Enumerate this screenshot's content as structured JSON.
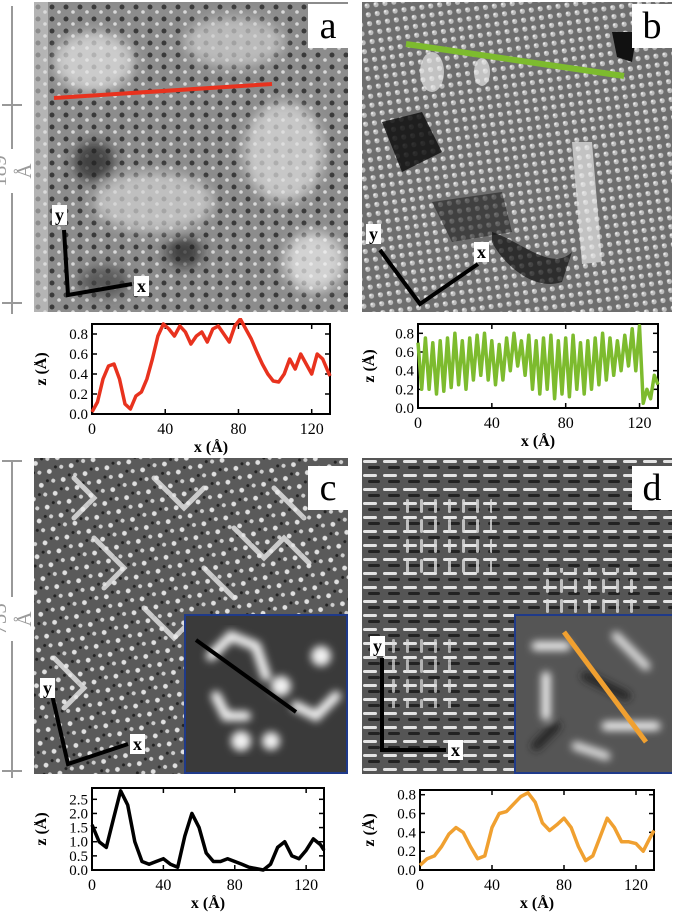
{
  "panels": {
    "a": {
      "label": "a",
      "x_axis": "x",
      "y_axis": "y"
    },
    "b": {
      "label": "b",
      "x_axis": "x",
      "y_axis": "y"
    },
    "c": {
      "label": "c",
      "x_axis": "x",
      "y_axis": "y"
    },
    "d": {
      "label": "d",
      "x_axis": "x",
      "y_axis": "y"
    }
  },
  "scalebars": {
    "top": "189 Å",
    "bottom": "755 Å"
  },
  "colors": {
    "a": "#e8321e",
    "b": "#7dbb2e",
    "c": "#000000",
    "d": "#f0a030",
    "inset_border": "#1f3a8a"
  },
  "chart_data": [
    {
      "type": "line",
      "panel": "a",
      "color": "#e8321e",
      "xlabel": "x (Å)",
      "ylabel": "z (Å)",
      "xlim": [
        0,
        130
      ],
      "ylim": [
        0,
        0.9
      ],
      "xticks": [
        "0",
        "40",
        "80",
        "120"
      ],
      "yticks": [
        "0.0",
        "0.2",
        "0.4",
        "0.6",
        "0.8"
      ],
      "x": [
        0,
        3,
        6,
        9,
        12,
        15,
        18,
        21,
        24,
        27,
        30,
        33,
        36,
        39,
        42,
        45,
        48,
        51,
        54,
        57,
        60,
        63,
        66,
        69,
        72,
        75,
        78,
        81,
        84,
        87,
        90,
        93,
        96,
        99,
        102,
        105,
        108,
        111,
        114,
        117,
        120,
        123,
        126,
        129,
        130
      ],
      "y": [
        0.02,
        0.12,
        0.35,
        0.48,
        0.5,
        0.35,
        0.1,
        0.05,
        0.18,
        0.22,
        0.35,
        0.55,
        0.78,
        0.9,
        0.85,
        0.78,
        0.88,
        0.82,
        0.7,
        0.78,
        0.82,
        0.72,
        0.85,
        0.88,
        0.8,
        0.72,
        0.88,
        0.95,
        0.85,
        0.75,
        0.62,
        0.5,
        0.4,
        0.33,
        0.32,
        0.4,
        0.55,
        0.45,
        0.6,
        0.5,
        0.4,
        0.6,
        0.55,
        0.42,
        0.38
      ]
    },
    {
      "type": "line",
      "panel": "b",
      "color": "#7dbb2e",
      "xlabel": "x (Å)",
      "ylabel": "z (Å)",
      "xlim": [
        0,
        130
      ],
      "ylim": [
        0,
        0.9
      ],
      "xticks": [
        "0",
        "40",
        "80",
        "120"
      ],
      "yticks": [
        "0.0",
        "0.2",
        "0.4",
        "0.6",
        "0.8"
      ],
      "x": [
        0,
        2,
        4,
        6,
        8,
        10,
        12,
        14,
        16,
        18,
        20,
        22,
        24,
        26,
        28,
        30,
        32,
        34,
        36,
        38,
        40,
        42,
        44,
        46,
        48,
        50,
        52,
        54,
        56,
        58,
        60,
        62,
        64,
        66,
        68,
        70,
        72,
        74,
        76,
        78,
        80,
        82,
        84,
        86,
        88,
        90,
        92,
        94,
        96,
        98,
        100,
        102,
        104,
        106,
        108,
        110,
        112,
        114,
        116,
        118,
        120,
        122,
        124,
        126,
        128,
        130
      ],
      "y": [
        0.7,
        0.2,
        0.75,
        0.2,
        0.7,
        0.15,
        0.72,
        0.18,
        0.75,
        0.22,
        0.8,
        0.25,
        0.72,
        0.2,
        0.75,
        0.3,
        0.78,
        0.35,
        0.8,
        0.3,
        0.72,
        0.25,
        0.68,
        0.3,
        0.75,
        0.4,
        0.8,
        0.45,
        0.72,
        0.35,
        0.78,
        0.2,
        0.72,
        0.15,
        0.75,
        0.2,
        0.78,
        0.1,
        0.72,
        0.15,
        0.75,
        0.12,
        0.78,
        0.2,
        0.7,
        0.15,
        0.72,
        0.2,
        0.75,
        0.25,
        0.8,
        0.3,
        0.75,
        0.35,
        0.72,
        0.4,
        0.78,
        0.45,
        0.85,
        0.4,
        0.88,
        0.05,
        0.2,
        0.1,
        0.35,
        0.25
      ]
    },
    {
      "type": "line",
      "panel": "c",
      "color": "#000000",
      "xlabel": "x (Å)",
      "ylabel": "z (Å)",
      "xlim": [
        0,
        130
      ],
      "ylim": [
        0,
        2.9
      ],
      "xticks": [
        "0",
        "40",
        "80",
        "120"
      ],
      "yticks": [
        "0.0",
        "0.5",
        "1.0",
        "1.5",
        "2.0",
        "2.5"
      ],
      "x": [
        0,
        4,
        8,
        12,
        16,
        20,
        24,
        28,
        32,
        36,
        40,
        44,
        48,
        52,
        56,
        60,
        64,
        68,
        72,
        76,
        80,
        84,
        88,
        92,
        96,
        100,
        104,
        108,
        112,
        116,
        120,
        124,
        128,
        130
      ],
      "y": [
        1.6,
        1.0,
        0.8,
        1.8,
        2.8,
        2.3,
        1.0,
        0.3,
        0.2,
        0.3,
        0.4,
        0.2,
        0.1,
        1.2,
        2.0,
        1.5,
        0.6,
        0.3,
        0.3,
        0.4,
        0.3,
        0.2,
        0.1,
        0.05,
        0.0,
        0.2,
        0.8,
        1.0,
        0.5,
        0.4,
        0.7,
        1.1,
        0.9,
        0.7
      ]
    },
    {
      "type": "line",
      "panel": "d",
      "color": "#f0a030",
      "xlabel": "x (Å)",
      "ylabel": "z (Å)",
      "xlim": [
        0,
        130
      ],
      "ylim": [
        0,
        0.85
      ],
      "xticks": [
        "0",
        "40",
        "80",
        "120"
      ],
      "yticks": [
        "0.0",
        "0.2",
        "0.4",
        "0.6",
        "0.8"
      ],
      "x": [
        0,
        4,
        8,
        12,
        16,
        20,
        24,
        28,
        32,
        36,
        40,
        44,
        48,
        52,
        56,
        60,
        64,
        68,
        72,
        76,
        80,
        84,
        88,
        92,
        96,
        100,
        104,
        108,
        112,
        116,
        120,
        124,
        128,
        130
      ],
      "y": [
        0.05,
        0.12,
        0.15,
        0.25,
        0.38,
        0.45,
        0.4,
        0.25,
        0.12,
        0.15,
        0.45,
        0.6,
        0.62,
        0.7,
        0.78,
        0.82,
        0.72,
        0.5,
        0.42,
        0.48,
        0.55,
        0.45,
        0.25,
        0.1,
        0.15,
        0.35,
        0.55,
        0.45,
        0.3,
        0.3,
        0.28,
        0.2,
        0.35,
        0.42
      ]
    }
  ]
}
